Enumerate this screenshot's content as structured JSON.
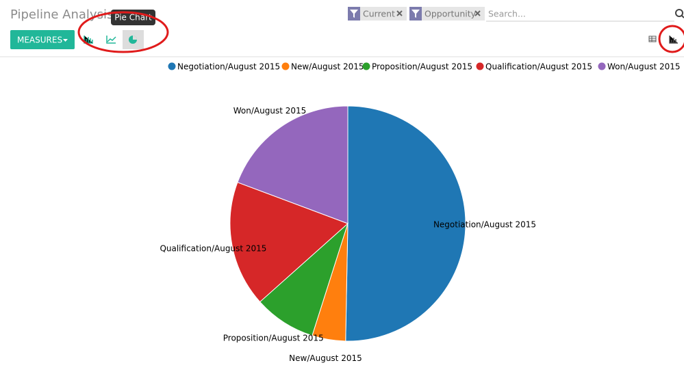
{
  "header": {
    "title": "Pipeline Analysis",
    "tooltip": "Pie Chart",
    "measures_button": "MEASURES",
    "filters": [
      "Current",
      "Opportunity"
    ],
    "search_placeholder": "Search..."
  },
  "chart_data": {
    "type": "pie",
    "categories": [
      "Negotiation/August 2015",
      "New/August 2015",
      "Proposition/August 2015",
      "Qualification/August 2015",
      "Won/August 2015"
    ],
    "values": [
      50.3,
      4.6,
      8.5,
      17.3,
      19.3
    ],
    "colors": [
      "#1f77b4",
      "#ff7f0e",
      "#2ca02c",
      "#d62728",
      "#9467bd"
    ],
    "legend": "top-right"
  }
}
